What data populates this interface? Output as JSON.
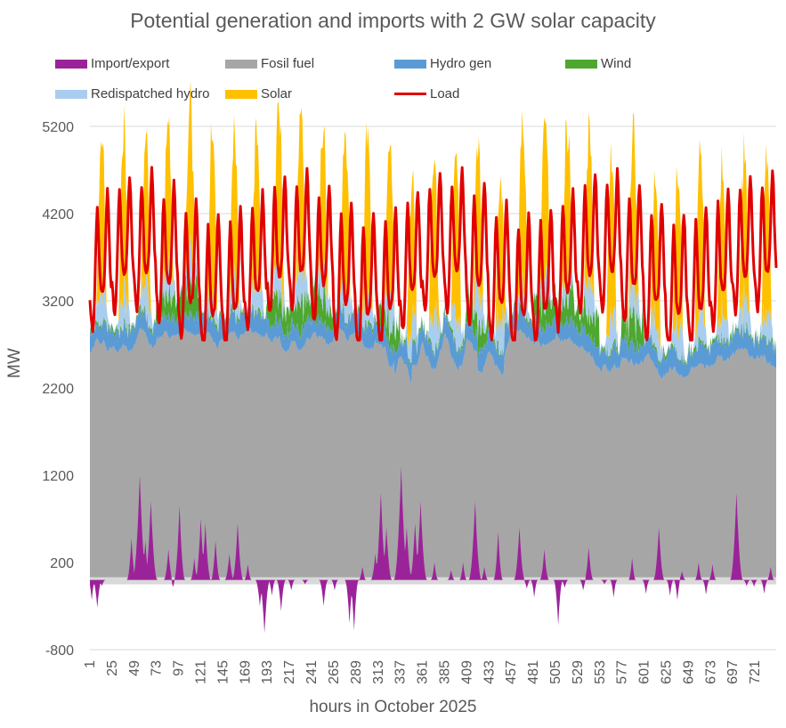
{
  "chart_data": {
    "type": "area",
    "title": "Potential generation and imports with 2 GW solar capacity",
    "xlabel": "hours in October 2025",
    "ylabel": "MW",
    "ylim": [
      -800,
      5200
    ],
    "yticks": [
      -800,
      200,
      1200,
      2200,
      3200,
      4200,
      5200
    ],
    "xlim": [
      1,
      744
    ],
    "xticks": [
      1,
      25,
      49,
      73,
      97,
      121,
      145,
      169,
      193,
      217,
      241,
      265,
      289,
      313,
      337,
      361,
      385,
      409,
      433,
      457,
      481,
      505,
      529,
      553,
      577,
      601,
      625,
      649,
      673,
      697,
      721
    ],
    "legend": [
      {
        "name": "Import/export",
        "color": "#9B2399",
        "kind": "area"
      },
      {
        "name": "Fosil fuel",
        "color": "#A6A6A6",
        "kind": "area"
      },
      {
        "name": "Hydro gen",
        "color": "#5B9BD5",
        "kind": "area"
      },
      {
        "name": "Wind",
        "color": "#4EA72E",
        "kind": "area"
      },
      {
        "name": "Redispatched hydro",
        "color": "#A9CDEE",
        "kind": "area"
      },
      {
        "name": "Solar",
        "color": "#FFC000",
        "kind": "area"
      },
      {
        "name": "Load",
        "color": "#E00000",
        "kind": "line"
      }
    ],
    "series_profile": {
      "note": "Hourly stacked areas; values approximated from the chart (MW).",
      "fossil_fuel_typical": 2600,
      "fossil_fuel_range": [
        2000,
        2950
      ],
      "hydro_gen_typical": 200,
      "wind_range": [
        0,
        500
      ],
      "redispatched_hydro_range": [
        0,
        700
      ],
      "solar_daily_peak_range": [
        800,
        2000
      ],
      "load_range": [
        2750,
        4750
      ],
      "import_export_range": [
        -630,
        1300
      ]
    },
    "import_spikes": [
      {
        "hour": 3,
        "value": -230
      },
      {
        "hour": 9,
        "value": -320
      },
      {
        "hour": 14,
        "value": -70
      },
      {
        "hour": 46,
        "value": 480
      },
      {
        "hour": 55,
        "value": 1200
      },
      {
        "hour": 61,
        "value": 450
      },
      {
        "hour": 67,
        "value": 900
      },
      {
        "hour": 86,
        "value": 350
      },
      {
        "hour": 91,
        "value": -80
      },
      {
        "hour": 98,
        "value": 850
      },
      {
        "hour": 114,
        "value": 250
      },
      {
        "hour": 121,
        "value": 700
      },
      {
        "hour": 126,
        "value": 650
      },
      {
        "hour": 137,
        "value": 450
      },
      {
        "hour": 152,
        "value": 300
      },
      {
        "hour": 161,
        "value": 650
      },
      {
        "hour": 172,
        "value": 180
      },
      {
        "hour": 185,
        "value": -300
      },
      {
        "hour": 190,
        "value": -610
      },
      {
        "hour": 198,
        "value": -180
      },
      {
        "hour": 208,
        "value": -360
      },
      {
        "hour": 219,
        "value": -120
      },
      {
        "hour": 234,
        "value": -50
      },
      {
        "hour": 254,
        "value": -300
      },
      {
        "hour": 266,
        "value": -120
      },
      {
        "hour": 282,
        "value": -500
      },
      {
        "hour": 287,
        "value": -580
      },
      {
        "hour": 296,
        "value": 150
      },
      {
        "hour": 310,
        "value": 300
      },
      {
        "hour": 316,
        "value": 1000
      },
      {
        "hour": 322,
        "value": 600
      },
      {
        "hour": 338,
        "value": 1300
      },
      {
        "hour": 344,
        "value": 600
      },
      {
        "hour": 353,
        "value": 650
      },
      {
        "hour": 359,
        "value": 900
      },
      {
        "hour": 374,
        "value": 200
      },
      {
        "hour": 392,
        "value": 110
      },
      {
        "hour": 405,
        "value": 200
      },
      {
        "hour": 418,
        "value": 900
      },
      {
        "hour": 428,
        "value": 150
      },
      {
        "hour": 443,
        "value": 550
      },
      {
        "hour": 466,
        "value": 600
      },
      {
        "hour": 474,
        "value": -100
      },
      {
        "hour": 482,
        "value": -200
      },
      {
        "hour": 493,
        "value": 350
      },
      {
        "hour": 508,
        "value": -520
      },
      {
        "hour": 515,
        "value": -90
      },
      {
        "hour": 535,
        "value": -120
      },
      {
        "hour": 541,
        "value": 370
      },
      {
        "hour": 558,
        "value": -50
      },
      {
        "hour": 568,
        "value": -200
      },
      {
        "hour": 588,
        "value": 250
      },
      {
        "hour": 603,
        "value": -160
      },
      {
        "hour": 617,
        "value": 600
      },
      {
        "hour": 629,
        "value": -180
      },
      {
        "hour": 637,
        "value": -230
      },
      {
        "hour": 642,
        "value": 100
      },
      {
        "hour": 660,
        "value": 200
      },
      {
        "hour": 668,
        "value": -170
      },
      {
        "hour": 675,
        "value": 180
      },
      {
        "hour": 701,
        "value": 1000
      },
      {
        "hour": 712,
        "value": -70
      },
      {
        "hour": 720,
        "value": -80
      },
      {
        "hour": 731,
        "value": -160
      },
      {
        "hour": 738,
        "value": 150
      }
    ]
  }
}
